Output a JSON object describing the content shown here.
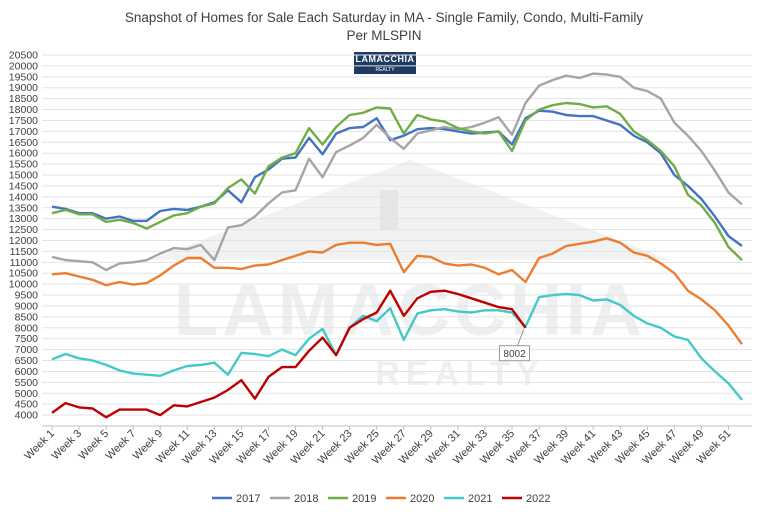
{
  "chart_data": {
    "type": "line",
    "title": "Snapshot of Homes for Sale Each Saturday in MA - Single Family, Condo, Multi-Family",
    "subtitle": "Per MLSPIN",
    "logo_text": "LAMACCHIA",
    "logo_subtext": "REALTY",
    "watermark_text": "LAMACCHIA",
    "watermark_subtext": "REALTY",
    "xlabel": "",
    "ylabel": "",
    "ylim": [
      3500,
      20500
    ],
    "y_ticks": [
      4000,
      4500,
      5000,
      5500,
      6000,
      6500,
      7000,
      7500,
      8000,
      8500,
      9000,
      9500,
      10000,
      10500,
      11000,
      11500,
      12000,
      12500,
      13000,
      13500,
      14000,
      14500,
      15000,
      15500,
      16000,
      16500,
      17000,
      17500,
      18000,
      18500,
      19000,
      19500,
      20000,
      20500
    ],
    "x_labels": [
      "Week 1",
      "Week 3",
      "Week 5",
      "Week 7",
      "Week 9",
      "Week 11",
      "Week 13",
      "Week 15",
      "Week 17",
      "Week 19",
      "Week 21",
      "Week 23",
      "Week 25",
      "Week 27",
      "Week 29",
      "Week 31",
      "Week 33",
      "Week 35",
      "Week 37",
      "Week 39",
      "Week 41",
      "Week 43",
      "Week 45",
      "Week 47",
      "Week 49",
      "Week 51"
    ],
    "weeks": 52,
    "grid": true,
    "legend_position": "bottom",
    "annotation": {
      "text": "8002",
      "series": "2022",
      "week": 36
    },
    "series": [
      {
        "name": "2017",
        "color": "#4472c4",
        "values": [
          13550,
          13450,
          13250,
          13250,
          13000,
          13100,
          12900,
          12900,
          13350,
          13450,
          13400,
          13550,
          13750,
          14300,
          13750,
          14900,
          15250,
          15750,
          15800,
          16700,
          15950,
          16900,
          17150,
          17200,
          17600,
          16600,
          16800,
          17100,
          17150,
          17100,
          17000,
          16900,
          16950,
          17000,
          16400,
          17600,
          17950,
          17900,
          17750,
          17700,
          17700,
          17500,
          17300,
          16800,
          16500,
          16000,
          15000,
          14500,
          13900,
          13100,
          12200,
          11750
        ]
      },
      {
        "name": "2018",
        "color": "#a5a5a5",
        "values": [
          11250,
          11100,
          11050,
          11000,
          10650,
          10950,
          11000,
          11100,
          11400,
          11650,
          11600,
          11800,
          11100,
          12600,
          12700,
          13100,
          13700,
          14200,
          14300,
          15750,
          14900,
          16050,
          16350,
          16700,
          17300,
          16700,
          16200,
          16900,
          17050,
          17200,
          17100,
          17200,
          17400,
          17650,
          16850,
          18300,
          19100,
          19350,
          19550,
          19450,
          19650,
          19600,
          19500,
          19000,
          18850,
          18500,
          17400,
          16800,
          16100,
          15200,
          14200,
          13650
        ]
      },
      {
        "name": "2019",
        "color": "#70ad47",
        "values": [
          13250,
          13400,
          13200,
          13200,
          12850,
          12950,
          12800,
          12550,
          12850,
          13150,
          13250,
          13550,
          13700,
          14400,
          14800,
          14150,
          15400,
          15800,
          16000,
          17150,
          16400,
          17200,
          17750,
          17850,
          18100,
          18050,
          16900,
          17750,
          17550,
          17450,
          17150,
          17000,
          16900,
          17000,
          16100,
          17500,
          18000,
          18200,
          18300,
          18250,
          18100,
          18150,
          17800,
          17000,
          16600,
          16100,
          15400,
          14100,
          13600,
          12800,
          11700,
          11100
        ]
      },
      {
        "name": "2020",
        "color": "#ed7d31",
        "values": [
          10450,
          10500,
          10350,
          10200,
          9950,
          10100,
          9980,
          10050,
          10400,
          10850,
          11200,
          11200,
          10750,
          10750,
          10700,
          10850,
          10900,
          11100,
          11300,
          11500,
          11450,
          11800,
          11900,
          11900,
          11800,
          11850,
          10550,
          11300,
          11250,
          10950,
          10850,
          10900,
          10750,
          10450,
          10650,
          10100,
          11200,
          11400,
          11750,
          11850,
          11950,
          12100,
          11900,
          11450,
          11300,
          10950,
          10500,
          9700,
          9300,
          8800,
          8100,
          7250
        ]
      },
      {
        "name": "2021",
        "color": "#44c8c8",
        "values": [
          6550,
          6800,
          6600,
          6500,
          6300,
          6050,
          5900,
          5850,
          5800,
          6050,
          6250,
          6300,
          6400,
          5850,
          6850,
          6800,
          6700,
          7000,
          6750,
          7500,
          7950,
          6750,
          8000,
          8550,
          8300,
          8900,
          7450,
          8650,
          8800,
          8850,
          8750,
          8700,
          8800,
          8800,
          8700,
          8050,
          9400,
          9500,
          9550,
          9500,
          9250,
          9300,
          9050,
          8550,
          8200,
          8000,
          7600,
          7450,
          6600,
          6000,
          5450,
          4700
        ]
      },
      {
        "name": "2022",
        "color": "#c00000",
        "values": [
          4100,
          4550,
          4350,
          4300,
          3900,
          4250,
          4250,
          4250,
          4000,
          4450,
          4400,
          4600,
          4800,
          5150,
          5600,
          4750,
          5750,
          6200,
          6200,
          6950,
          7550,
          6750,
          8000,
          8400,
          8700,
          9700,
          8550,
          9350,
          9650,
          9700,
          9550,
          9350,
          9150,
          8950,
          8850,
          8002
        ]
      }
    ]
  }
}
